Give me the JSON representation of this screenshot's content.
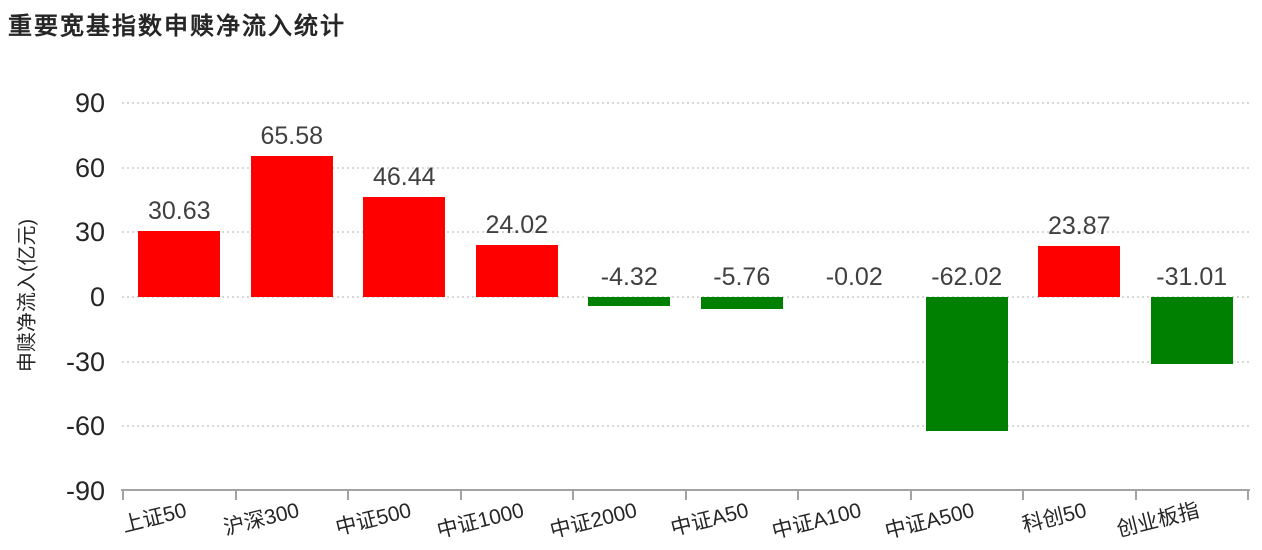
{
  "title": "重要宽基指数申赎净流入统计",
  "chart_data": {
    "type": "bar",
    "title": "重要宽基指数申赎净流入统计",
    "categories": [
      "上证50",
      "沪深300",
      "中证500",
      "中证1000",
      "中证2000",
      "中证A50",
      "中证A100",
      "中证A500",
      "科创50",
      "创业板指"
    ],
    "values": [
      30.63,
      65.58,
      46.44,
      24.02,
      -4.32,
      -5.76,
      -0.02,
      -62.02,
      23.87,
      -31.01
    ],
    "xlabel": "",
    "ylabel": "申赎净流入(亿元)",
    "ylim": [
      -90,
      90
    ],
    "yticks": [
      90,
      60,
      30,
      0,
      -30,
      -60,
      -90
    ],
    "grid": "horizontal-dotted",
    "legend": "none",
    "value_label_decimals": 2,
    "colors": {
      "positive_bar": "#ff0000",
      "negative_bar": "#008000",
      "gridline": "#d8d8d8",
      "axis": "#a3a3a3",
      "value_label": "#404040",
      "tick_label": "#262626",
      "title": "#262626"
    }
  }
}
